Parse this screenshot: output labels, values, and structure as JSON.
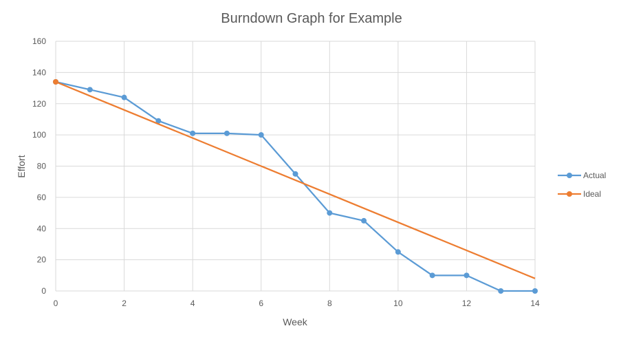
{
  "chart_data": {
    "type": "line",
    "title": "Burndown Graph for Example",
    "xlabel": "Week",
    "ylabel": "Effort",
    "xlim": [
      0,
      14
    ],
    "ylim": [
      0,
      160
    ],
    "xticks": [
      0,
      2,
      4,
      6,
      8,
      10,
      12,
      14
    ],
    "yticks": [
      0,
      20,
      40,
      60,
      80,
      100,
      120,
      140,
      160
    ],
    "grid": true,
    "legend_position": "right",
    "series": [
      {
        "name": "Actual",
        "color": "#5B9BD5",
        "markers": true,
        "x": [
          0,
          1,
          2,
          3,
          4,
          5,
          6,
          7,
          8,
          9,
          10,
          11,
          12,
          13,
          14
        ],
        "values": [
          134,
          129,
          124,
          109,
          101,
          101,
          100,
          75,
          50,
          45,
          25,
          10,
          10,
          0,
          0
        ]
      },
      {
        "name": "Ideal",
        "color": "#ED7D31",
        "markers": false,
        "x": [
          0,
          14
        ],
        "values": [
          134,
          8
        ]
      }
    ]
  }
}
